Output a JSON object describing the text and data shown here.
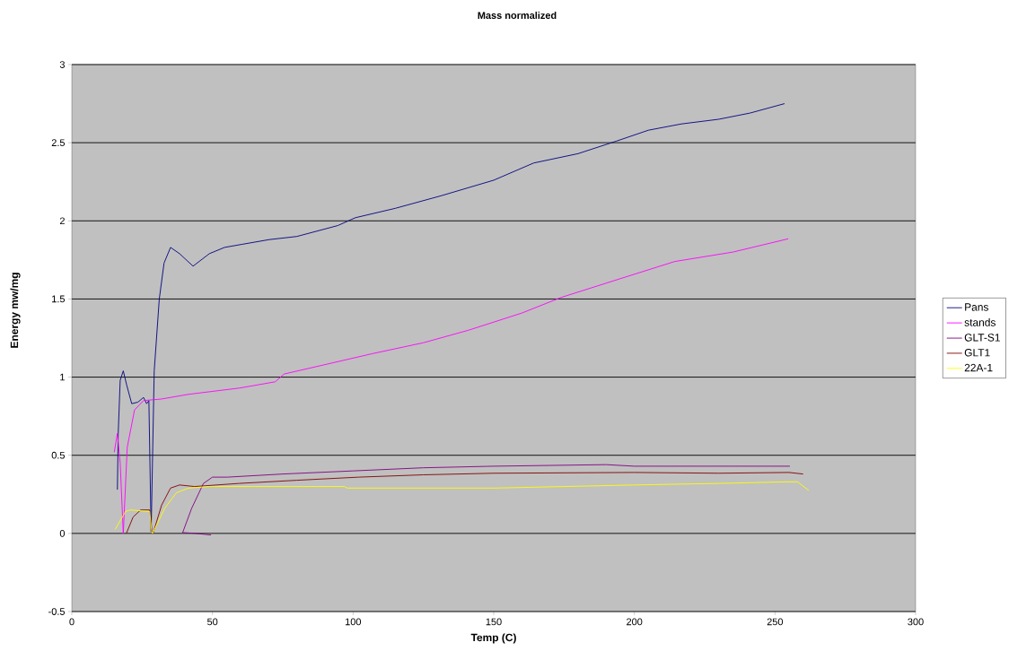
{
  "chart_data": {
    "type": "line",
    "title": "Mass normalized",
    "xlabel": "Temp (C)",
    "ylabel": "Energy mw/mg",
    "xlim": [
      0,
      300
    ],
    "xticks": [
      0,
      50,
      100,
      150,
      200,
      250,
      300
    ],
    "ylim": [
      -0.5,
      3
    ],
    "yticks": [
      -0.5,
      0,
      0.5,
      1,
      1.5,
      2,
      2.5,
      3
    ],
    "grid": "y",
    "legend": "right",
    "marker": "none",
    "line_style": "solid",
    "series": [
      {
        "name": "Pans",
        "color": "#000080",
        "x": [
          16.2,
          16.5,
          17.2,
          18.3,
          19.5,
          21.3,
          23.5,
          25.5,
          26.6,
          27.4,
          28.2,
          29.3,
          31.1,
          32.8,
          35.1,
          38.3,
          43.1,
          48.9,
          54.3,
          60.6,
          70.2,
          80,
          94.6,
          100.8,
          115,
          131.2,
          150,
          164.2,
          180,
          193.6,
          205,
          216.7,
          230,
          241.2,
          253.4
        ],
        "values": [
          0.28,
          0.64,
          0.98,
          1.04,
          0.95,
          0.83,
          0.84,
          0.87,
          0.83,
          0.85,
          0.01,
          1.04,
          1.5,
          1.73,
          1.83,
          1.79,
          1.71,
          1.79,
          1.83,
          1.85,
          1.88,
          1.9,
          1.97,
          2.02,
          2.08,
          2.16,
          2.26,
          2.37,
          2.43,
          2.51,
          2.58,
          2.62,
          2.65,
          2.69,
          2.75
        ]
      },
      {
        "name": "stands",
        "color": "#ff00ff",
        "x": [
          15.1,
          16.2,
          17.2,
          18.3,
          19.7,
          22.3,
          25.5,
          31.9,
          41.5,
          59.6,
          72.3,
          75.5,
          90,
          106.8,
          125,
          141,
          160,
          174,
          195,
          214.4,
          235,
          254.7
        ],
        "values": [
          0.52,
          0.64,
          0.45,
          0.0,
          0.55,
          0.79,
          0.85,
          0.86,
          0.89,
          0.93,
          0.97,
          1.02,
          1.08,
          1.15,
          1.22,
          1.3,
          1.41,
          1.51,
          1.63,
          1.74,
          1.8,
          1.885
        ]
      },
      {
        "name": "GLT-S1",
        "color": "#800080",
        "x": [
          49.5,
          44,
          39.4,
          42.6,
          46.8,
          50,
          55.3,
          75,
          100,
          125,
          150,
          190,
          200,
          230,
          255.3
        ],
        "values": [
          -0.01,
          0.0,
          0.005,
          0.16,
          0.32,
          0.36,
          0.36,
          0.38,
          0.4,
          0.42,
          0.43,
          0.44,
          0.43,
          0.43,
          0.43
        ]
      },
      {
        "name": "GLT1",
        "color": "#800000",
        "x": [
          19.4,
          21.8,
          24.5,
          27.7,
          28.5,
          28.9,
          31.9,
          35.1,
          38.3,
          43.6,
          59.6,
          80,
          102,
          125,
          150,
          200,
          230,
          255,
          260
        ],
        "values": [
          0.0,
          0.105,
          0.15,
          0.15,
          0.02,
          0.0,
          0.18,
          0.29,
          0.31,
          0.3,
          0.32,
          0.34,
          0.36,
          0.375,
          0.385,
          0.39,
          0.385,
          0.39,
          0.38
        ]
      },
      {
        "name": "22A-1",
        "color": "#ffff00",
        "x": [
          15.4,
          19.1,
          20.7,
          27.7,
          28.4,
          28.7,
          33,
          37.2,
          41.5,
          48.9,
          96.8,
          98,
          150,
          175,
          200,
          230,
          255,
          258,
          262
        ],
        "values": [
          0.025,
          0.14,
          0.15,
          0.14,
          0.01,
          0.0,
          0.16,
          0.26,
          0.29,
          0.3,
          0.3,
          0.29,
          0.29,
          0.3,
          0.31,
          0.32,
          0.33,
          0.33,
          0.275
        ]
      }
    ]
  }
}
